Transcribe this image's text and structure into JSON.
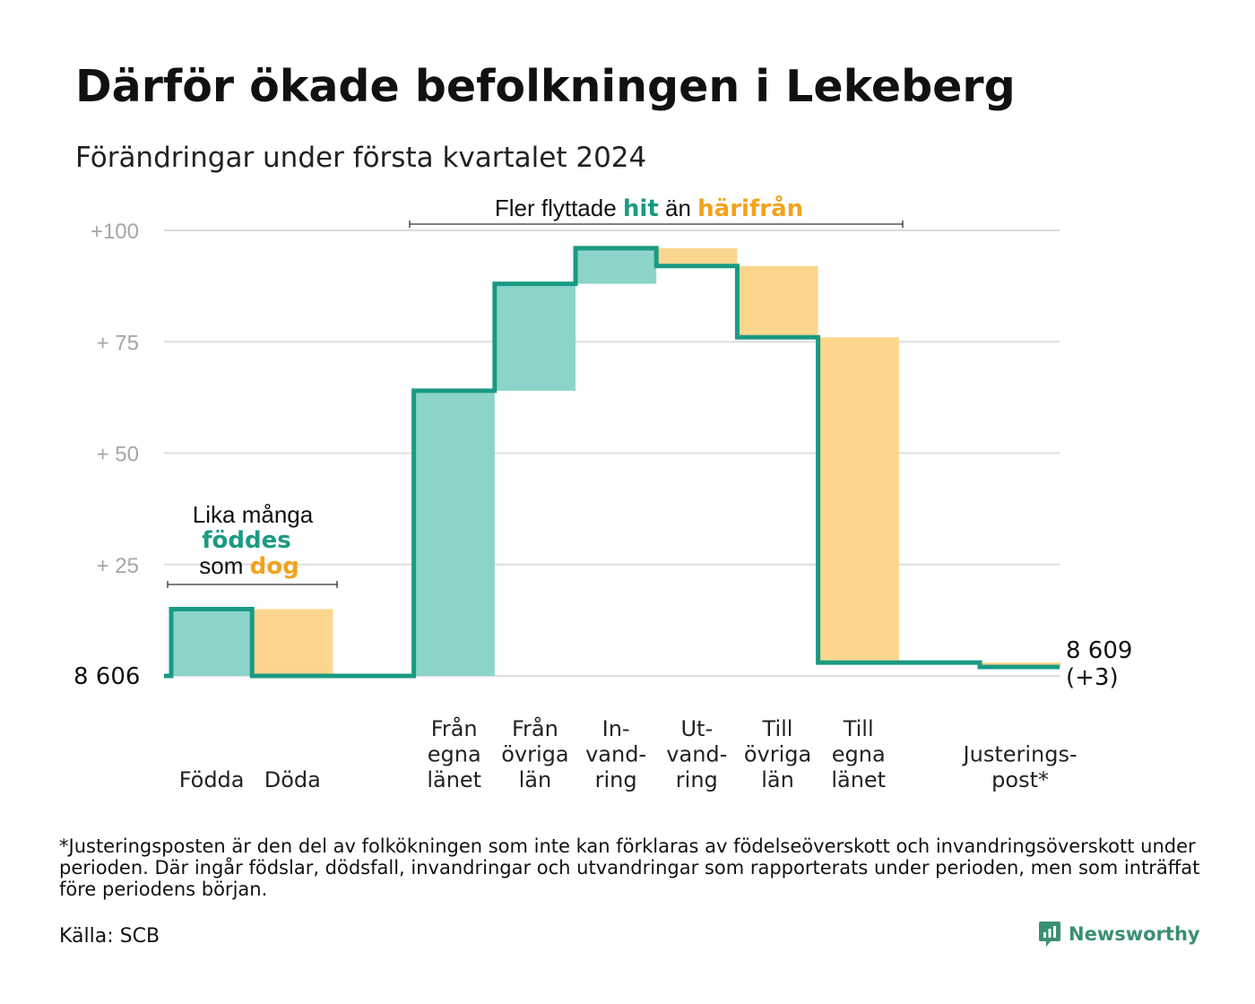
{
  "title": "Därför ökade befolkningen i Lekeberg",
  "subtitle": "Förändringar under första kvartalet 2024",
  "colors": {
    "in": "#1a9a83",
    "in_fill": "#8cd4c9",
    "out": "#f3a21c",
    "out_fill": "#fcd68e",
    "grid": "#dddddd",
    "tick": "#a6a6a6"
  },
  "chart_data": {
    "type": "waterfall",
    "base_value": 8606,
    "end_value": 8609,
    "ylim": [
      0,
      100
    ],
    "y_ticks": [
      {
        "value": 100,
        "label": "+100"
      },
      {
        "value": 75,
        "label": "+  75"
      },
      {
        "value": 50,
        "label": "+  50"
      },
      {
        "value": 25,
        "label": "+  25"
      },
      {
        "value": 0,
        "label": "8  606"
      }
    ],
    "steps": [
      {
        "category": "Födda",
        "lines": [
          "Födda"
        ],
        "change": 15
      },
      {
        "category": "Döda",
        "lines": [
          "Döda"
        ],
        "change": -15
      },
      {
        "category": "",
        "lines": [],
        "change": 0
      },
      {
        "category": "Från egna länet",
        "lines": [
          "Från",
          "egna",
          "länet"
        ],
        "change": 64
      },
      {
        "category": "Från övriga län",
        "lines": [
          "Från",
          "övriga",
          "län"
        ],
        "change": 24
      },
      {
        "category": "In-vand-ring",
        "lines": [
          "In-",
          "vand-",
          "ring"
        ],
        "change": 8
      },
      {
        "category": "Ut-vand-ring",
        "lines": [
          "Ut-",
          "vand-",
          "ring"
        ],
        "change": -4
      },
      {
        "category": "Till övriga län",
        "lines": [
          "Till",
          "övriga",
          "län"
        ],
        "change": -16
      },
      {
        "category": "Till egna länet",
        "lines": [
          "Till",
          "egna",
          "länet"
        ],
        "change": -73
      },
      {
        "category": "",
        "lines": [],
        "change": 0
      },
      {
        "category": "Justeringspost*",
        "lines": [
          "Justerings-",
          "post*"
        ],
        "change": -1
      }
    ],
    "end_label": {
      "value": "8 609",
      "change": "(+3)"
    },
    "annotations": {
      "births": {
        "line1": "Lika många",
        "word_in": "föddes",
        "pre_out": "som ",
        "word_out": "dog"
      },
      "moves": {
        "pre": "Fler flyttade ",
        "word_in": "hit",
        "mid": " än ",
        "word_out": "härifrån"
      }
    }
  },
  "footnote": "*Justeringsposten är den del av folkökningen som inte kan förklaras av födelseöverskott och invandringsöverskott under perioden. Där ingår födslar, dödsfall, invandringar och utvandringar som rapporterats under perioden, men som inträffat före periodens början.",
  "source": "Källa: SCB",
  "brand": {
    "name": "Newsworthy",
    "icon": "newsworthy-logo-icon"
  }
}
